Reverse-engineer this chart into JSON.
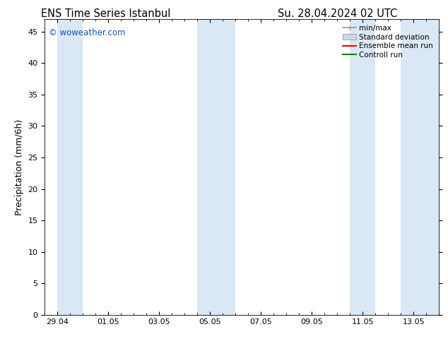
{
  "title_left": "ENS Time Series Istanbul",
  "title_right": "Su. 28.04.2024 02 UTC",
  "ylabel": "Precipitation (mm/6h)",
  "watermark": "© woweather.com",
  "watermark_color": "#1155bb",
  "bg_color": "#ffffff",
  "plot_bg_color": "#ffffff",
  "ylim": [
    0,
    47
  ],
  "yticks": [
    0,
    5,
    10,
    15,
    20,
    25,
    30,
    35,
    40,
    45
  ],
  "xtick_labels": [
    "29.04",
    "01.05",
    "03.05",
    "05.05",
    "07.05",
    "09.05",
    "11.05",
    "13.05"
  ],
  "xtick_positions": [
    0,
    2,
    4,
    6,
    8,
    10,
    12,
    14
  ],
  "xlim": [
    -0.5,
    15.0
  ],
  "shaded_bands": [
    [
      0.0,
      1.0
    ],
    [
      5.5,
      7.0
    ],
    [
      11.5,
      12.5
    ],
    [
      13.5,
      15.0
    ]
  ],
  "shaded_color": "#dae8f5",
  "legend_items": [
    {
      "label": "min/max",
      "color": "#999999",
      "style": "errorbar"
    },
    {
      "label": "Standard deviation",
      "color": "#c8d8e8",
      "style": "box"
    },
    {
      "label": "Ensemble mean run",
      "color": "#ff0000",
      "style": "line"
    },
    {
      "label": "Controll run",
      "color": "#008800",
      "style": "line"
    }
  ],
  "title_fontsize": 10.5,
  "tick_fontsize": 8,
  "legend_fontsize": 7.5,
  "ylabel_fontsize": 9,
  "watermark_fontsize": 8.5
}
